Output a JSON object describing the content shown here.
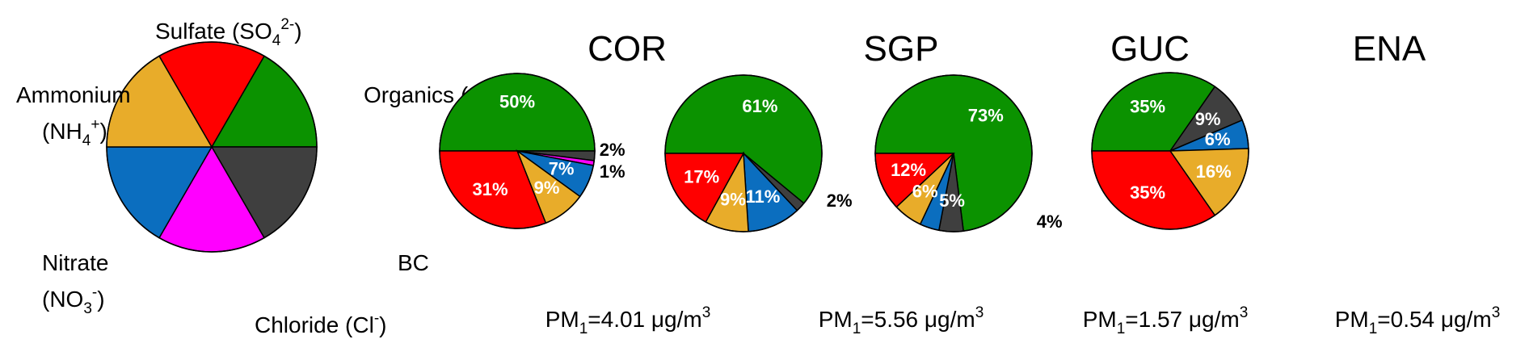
{
  "legend": {
    "categories": [
      "Organics (OA)",
      "BC",
      "Chloride (Cl-)",
      "Nitrate (NO3-)",
      "Ammonium (NH4+)",
      "Sulfate (SO42-)"
    ],
    "values": [
      1,
      1,
      1,
      1,
      1,
      1
    ],
    "colors": [
      "#0b9200",
      "#3f3f3f",
      "#ff00ff",
      "#0b6ebf",
      "#e8ac2a",
      "#ff0000"
    ]
  },
  "chart_data": [
    {
      "type": "pie",
      "title": "COR",
      "categories": [
        "Organics (OA)",
        "BC",
        "Chloride (Cl-)",
        "Nitrate (NO3-)",
        "Ammonium (NH4+)",
        "Sulfate (SO42-)"
      ],
      "values": [
        50,
        2,
        1,
        7,
        9,
        31
      ],
      "labels": [
        "50%",
        "2%",
        "1%",
        "7%",
        "9%",
        "31%"
      ],
      "pm1": {
        "prefix": "PM",
        "subscript": "1",
        "value": "=4.01 μg/m",
        "superscript": "3"
      }
    },
    {
      "type": "pie",
      "title": "SGP",
      "categories": [
        "Organics (OA)",
        "BC",
        "Chloride (Cl-)",
        "Nitrate (NO3-)",
        "Ammonium (NH4+)",
        "Sulfate (SO42-)"
      ],
      "values": [
        61,
        2,
        0,
        11,
        9,
        17
      ],
      "labels": [
        "61%",
        "2%",
        "",
        "11%",
        "9%",
        "17%"
      ],
      "pm1": {
        "prefix": "PM",
        "subscript": "1",
        "value": "=5.56 μg/m",
        "superscript": "3"
      }
    },
    {
      "type": "pie",
      "title": "GUC",
      "categories": [
        "Organics (OA)",
        "BC",
        "Chloride (Cl-)",
        "Nitrate (NO3-)",
        "Ammonium (NH4+)",
        "Sulfate (SO42-)"
      ],
      "values": [
        73,
        5,
        0,
        4,
        6,
        12
      ],
      "labels": [
        "73%",
        "5%",
        "",
        "4%",
        "6%",
        "12%"
      ],
      "pm1": {
        "prefix": "PM",
        "subscript": "1",
        "value": "=1.57 μg/m",
        "superscript": "3"
      }
    },
    {
      "type": "pie",
      "title": "ENA",
      "categories": [
        "Organics (OA)",
        "BC",
        "Chloride (Cl-)",
        "Nitrate (NO3-)",
        "Ammonium (NH4+)",
        "Sulfate (SO42-)"
      ],
      "values": [
        35,
        9,
        0,
        6,
        16,
        35
      ],
      "labels": [
        "35%",
        "9%",
        "",
        "6%",
        "16%",
        "35%"
      ],
      "pm1": {
        "prefix": "PM",
        "subscript": "1",
        "value": "=0.54 μg/m",
        "superscript": "3"
      }
    }
  ]
}
